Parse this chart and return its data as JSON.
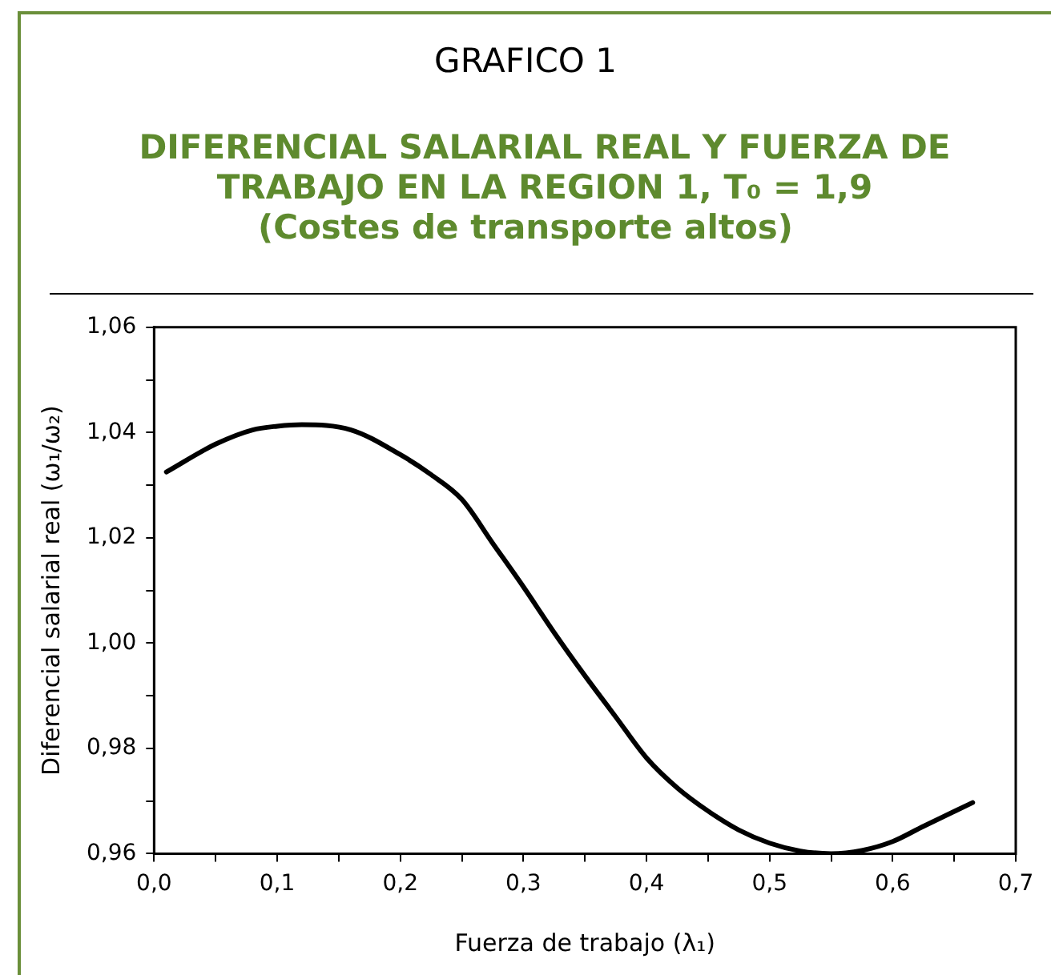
{
  "chart_data": {
    "type": "line",
    "title": "DIFERENCIAL SALARIAL REAL Y FUERZA DE TRABAJO EN LA REGION 1, T₀ = 1,9",
    "subtitle": "(Costes de transporte altos)",
    "annotations": [
      "GRAFICO 1"
    ],
    "xlabel": "Fuerza de trabajo (λ₁)",
    "ylabel": "Diferencial salarial real (ω₁/ω₂)",
    "x": [
      0.01,
      0.05,
      0.08,
      0.1,
      0.12,
      0.16,
      0.2,
      0.225,
      0.25,
      0.275,
      0.3,
      0.325,
      0.35,
      0.375,
      0.4,
      0.425,
      0.45,
      0.475,
      0.5,
      0.525,
      0.55,
      0.575,
      0.6,
      0.625,
      0.665
    ],
    "series": [
      {
        "color": "#000000",
        "values": [
          1.0325,
          1.0378,
          1.0405,
          1.0412,
          1.0415,
          1.0405,
          1.0358,
          1.032,
          1.0273,
          1.019,
          1.0107,
          1.002,
          0.9938,
          0.986,
          0.9782,
          0.9725,
          0.9681,
          0.9645,
          0.962,
          0.9605,
          0.96,
          0.9606,
          0.9623,
          0.9652,
          0.9697
        ]
      }
    ],
    "xlim": [
      0,
      0.7
    ],
    "xticks": [
      {
        "value": 0,
        "label": "0,0"
      },
      {
        "value": 0.05,
        "label": null
      },
      {
        "value": 0.1,
        "label": "0,1"
      },
      {
        "value": 0.15,
        "label": null
      },
      {
        "value": 0.2,
        "label": "0,2"
      },
      {
        "value": 0.25,
        "label": null
      },
      {
        "value": 0.3,
        "label": "0,3"
      },
      {
        "value": 0.35,
        "label": null
      },
      {
        "value": 0.4,
        "label": "0,4"
      },
      {
        "value": 0.45,
        "label": null
      },
      {
        "value": 0.5,
        "label": "0,5"
      },
      {
        "value": 0.55,
        "label": null
      },
      {
        "value": 0.6,
        "label": "0,6"
      },
      {
        "value": 0.65,
        "label": null
      },
      {
        "value": 0.7,
        "label": "0,7"
      }
    ],
    "ylim": [
      0.96,
      1.06
    ],
    "yticks": [
      {
        "value": 0.96,
        "label": "0,96"
      },
      {
        "value": 0.97,
        "label": null
      },
      {
        "value": 0.98,
        "label": "0,98"
      },
      {
        "value": 0.99,
        "label": null
      },
      {
        "value": 1,
        "label": "1,00"
      },
      {
        "value": 1.01,
        "label": null
      },
      {
        "value": 1.02,
        "label": "1,02"
      },
      {
        "value": 1.03,
        "label": null
      },
      {
        "value": 1.04,
        "label": "1,04"
      },
      {
        "value": 1.05,
        "label": null
      },
      {
        "value": 1.06,
        "label": "1,06"
      }
    ],
    "grid": false,
    "legend": false,
    "marker": "none",
    "line_style": "solid"
  }
}
